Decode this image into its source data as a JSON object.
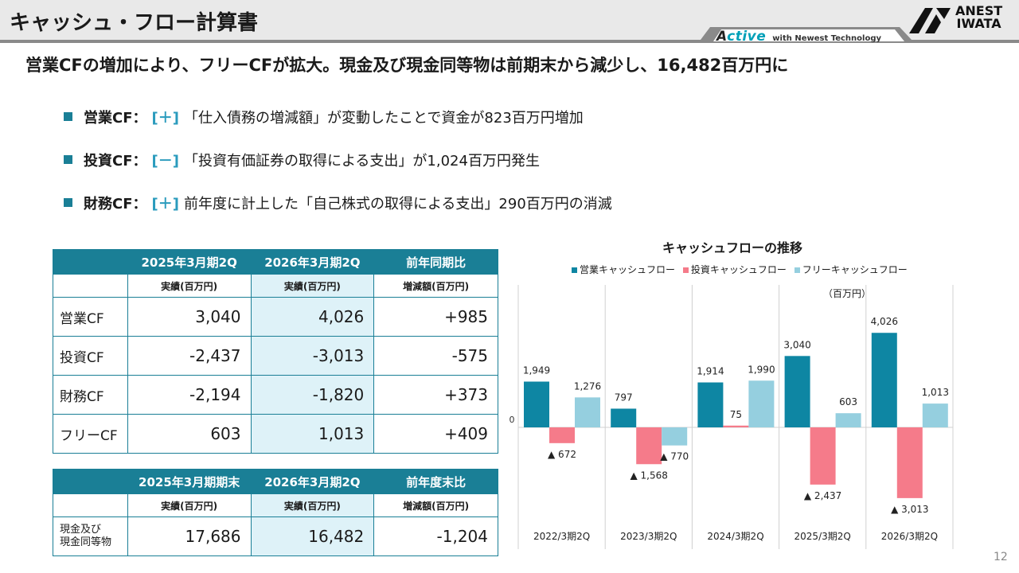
{
  "header": {
    "title": "キャッシュ・フロー計算書",
    "tagline_brand": "ctive",
    "tagline_brand_prefix": "A",
    "tagline_text": "with Newest Technology",
    "company_line1": "ANEST",
    "company_line2": "IWATA"
  },
  "subtitle": "営業CFの増加により、フリーCFが拡大。現金及び現金同等物は前期末から減少し、16,482百万円に",
  "bullets": [
    {
      "label": "営業CF：",
      "sign": "[＋]",
      "text": "「仕入債務の増減額」が変動したことで資金が823百万円増加"
    },
    {
      "label": "投資CF：",
      "sign": "[－]",
      "text": "「投資有価証券の取得による支出」が1,024百万円発生"
    },
    {
      "label": "財務CF：",
      "sign": "[＋]",
      "text": "前年度に計上した「自己株式の取得による支出」290百万円の消滅"
    }
  ],
  "table1": {
    "headers": [
      "2025年3月期2Q",
      "2026年3月期2Q",
      "前年同期比"
    ],
    "units": [
      "実績(百万円)",
      "実績(百万円)",
      "増減額(百万円)"
    ],
    "rows": [
      {
        "label": "営業CF",
        "v1": "3,040",
        "v2": "4,026",
        "diff": "+985"
      },
      {
        "label": "投資CF",
        "v1": "-2,437",
        "v2": "-3,013",
        "diff": "-575"
      },
      {
        "label": "財務CF",
        "v1": "-2,194",
        "v2": "-1,820",
        "diff": "+373"
      },
      {
        "label": "フリーCF",
        "v1": "603",
        "v2": "1,013",
        "diff": "+409"
      }
    ]
  },
  "table2": {
    "headers": [
      "2025年3月期期末",
      "2026年3月期2Q",
      "前年度末比"
    ],
    "units": [
      "実績(百万円)",
      "実績(百万円)",
      "増減額(百万円)"
    ],
    "row": {
      "label1": "現金及び",
      "label2": "現金同等物",
      "v1": "17,686",
      "v2": "16,482",
      "diff": "-1,204"
    }
  },
  "chart_data": {
    "type": "bar",
    "title": "キャッシュフローの推移",
    "unit": "（百万円）",
    "categories": [
      "2022/3期2Q",
      "2023/3期2Q",
      "2024/3期2Q",
      "2025/3期2Q",
      "2026/3期2Q"
    ],
    "series": [
      {
        "name": "営業キャッシュフロー",
        "color": "#0e86a3",
        "values": [
          1949,
          797,
          1914,
          3040,
          4026
        ],
        "labels": [
          "1,949",
          "797",
          "1,914",
          "3,040",
          "4,026"
        ]
      },
      {
        "name": "投資キャッシュフロー",
        "color": "#f57b8a",
        "values": [
          -672,
          -1568,
          75,
          -2437,
          -3013
        ],
        "labels": [
          "▲ 672",
          "▲ 1,568",
          "75",
          "▲ 2,437",
          "▲ 3,013"
        ]
      },
      {
        "name": "フリーキャッシュフロー",
        "color": "#95cfdf",
        "values": [
          1276,
          -770,
          1990,
          603,
          1013
        ],
        "labels": [
          "1,276",
          "▲ 770",
          "1,990",
          "603",
          "1,013"
        ]
      }
    ],
    "zero_label": "0",
    "ylim": [
      -3500,
      4500
    ]
  },
  "page_number": "12"
}
